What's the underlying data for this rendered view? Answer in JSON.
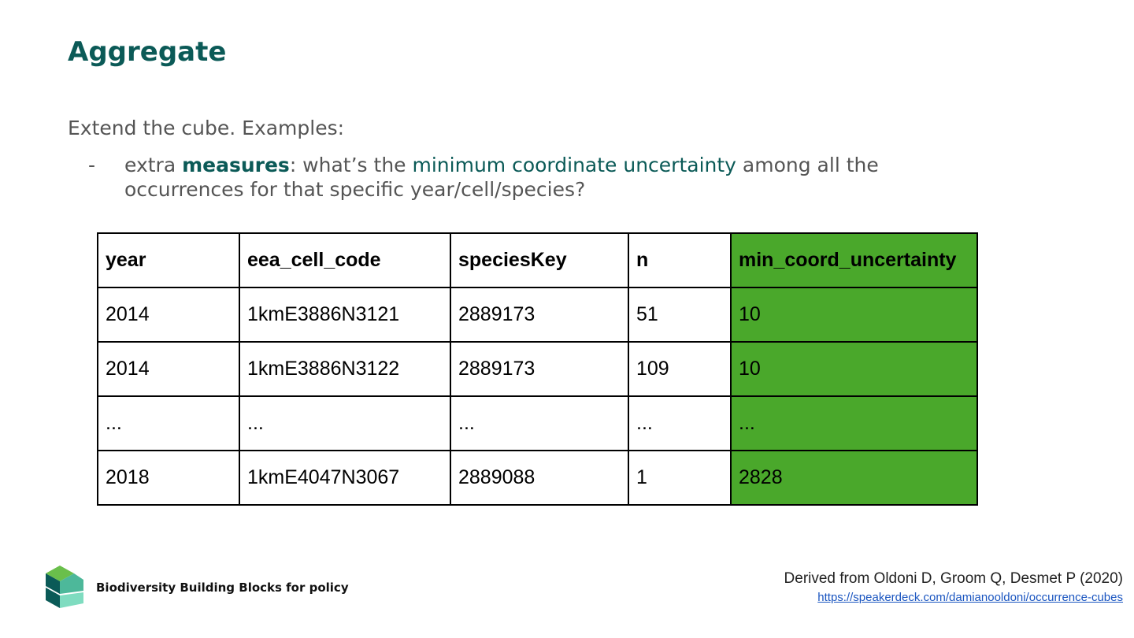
{
  "header": {
    "title": "Aggregate"
  },
  "intro": "Extend the cube. Examples:",
  "bullet": {
    "marker": "-",
    "parts": [
      {
        "text": "extra ",
        "style": "plain"
      },
      {
        "text": "measures",
        "style": "bold"
      },
      {
        "text": ": what’s the ",
        "style": "plain"
      },
      {
        "text": "minimum coordinate uncertainty",
        "style": "accent"
      },
      {
        "text": " among all the occurrences for that specific year/cell/species?",
        "style": "plain"
      }
    ]
  },
  "table": {
    "header": [
      "year",
      "eea_cell_code",
      "speciesKey",
      "n",
      "min_coord_uncertainty"
    ],
    "rows": [
      [
        "2014",
        "1kmE3886N3121",
        "2889173",
        "51",
        "10"
      ],
      [
        "2014",
        "1kmE3886N3122",
        "2889173",
        "109",
        "10"
      ],
      [
        "...",
        "...",
        "...",
        "...",
        "..."
      ],
      [
        "2018",
        "1kmE4047N3067",
        "2889088",
        "1",
        "2828"
      ]
    ],
    "highlight_color": "#4aa82b"
  },
  "footer": {
    "logo_text": "Biodiversity Building Blocks for policy",
    "citation": "Derived from Oldoni D, Groom Q, Desmet P (2020)",
    "link": "https://speakerdeck.com/damianooldoni/occurrence-cubes"
  }
}
